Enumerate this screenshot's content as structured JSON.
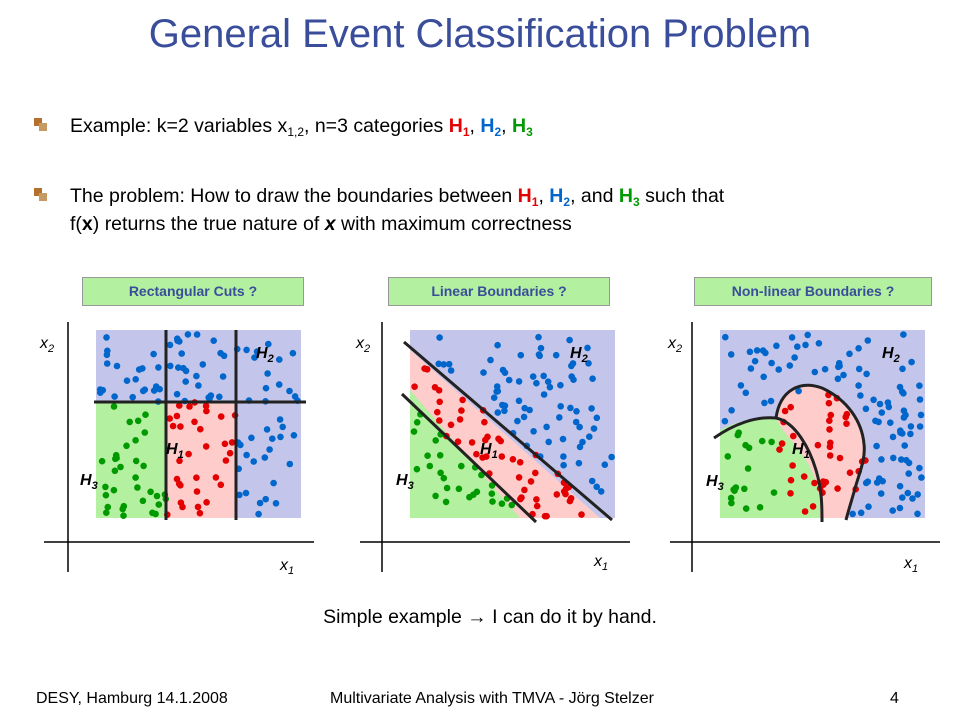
{
  "title": "General Event Classification Problem",
  "bullets": {
    "b1": {
      "prefix": "Example: k=2 variables x",
      "sub_x": "1,2",
      "mid": ", n=3 categories ",
      "h1": "H",
      "h1_sub": "1",
      "c1": ", ",
      "h2": "H",
      "h2_sub": "2",
      "c2": ", ",
      "h3": "H",
      "h3_sub": "3"
    },
    "b2": {
      "line1_prefix": "The problem: How to draw the boundaries between ",
      "h1": "H",
      "h1_sub": "1",
      "c1": ", ",
      "h2": "H",
      "h2_sub": "2",
      "c2": ", and ",
      "h3": "H",
      "h3_sub": "3",
      "line1_suffix": " such that",
      "line2_a": "f(",
      "line2_x": "x",
      "line2_b": ") returns the true nature of ",
      "line2_x2": "x",
      "line2_c": " with maximum correctness"
    }
  },
  "panels": [
    {
      "label": "Rectangular Cuts ?"
    },
    {
      "label": "Linear Boundaries ?"
    },
    {
      "label": "Non-linear Boundaries ?"
    }
  ],
  "axis": {
    "x": "x",
    "x_sub": "1",
    "y": "x",
    "y_sub": "2"
  },
  "classes": {
    "h1": "H",
    "h1_sub": "1",
    "h2": "H",
    "h2_sub": "2",
    "h3": "H",
    "h3_sub": "3"
  },
  "colors": {
    "title": "#3a4d9a",
    "h1": "#e20000",
    "h2": "#0066cc",
    "h3": "#009a00",
    "region_h1": "#ffcccc",
    "region_h2": "#c3c6ea",
    "region_h3": "#b3f0a0"
  },
  "caption": {
    "text": "Simple example ",
    "arrow": "→",
    "rest": " I can do it by hand."
  },
  "footer": {
    "left": "DESY, Hamburg 14.1.2008",
    "center": "Multivariate Analysis with TMVA - Jörg Stelzer",
    "page": "4"
  }
}
